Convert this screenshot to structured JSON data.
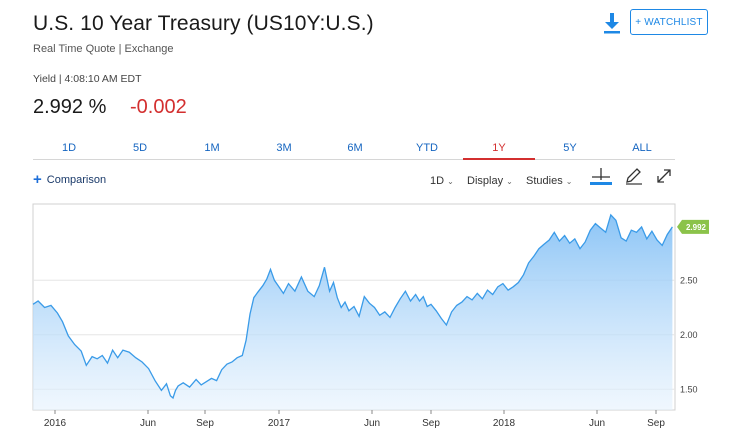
{
  "header": {
    "title": "U.S. 10 Year Treasury (US10Y:U.S.)",
    "subtitle": "Real Time Quote | Exchange",
    "watchlist_label": "+ WATCHLIST"
  },
  "quote": {
    "meta": "Yield | 4:08:10 AM EDT",
    "price": "2.992 %",
    "change": "-0.002",
    "change_color": "#d32f2f"
  },
  "tabs": [
    "1D",
    "5D",
    "1M",
    "3M",
    "6M",
    "YTD",
    "1Y",
    "5Y",
    "ALL"
  ],
  "active_tab": "1Y",
  "toolbar": {
    "comparison_label": "Comparison",
    "interval_label": "1D",
    "display_label": "Display",
    "studies_label": "Studies"
  },
  "colors": {
    "accent": "#1e88e5",
    "line": "#3a9be8",
    "last_badge": "#8bc34a"
  },
  "chart_data": {
    "type": "area",
    "x_tick_labels": [
      "2016",
      "Jun",
      "Sep",
      "2017",
      "Jun",
      "Sep",
      "2018",
      "Jun",
      "Sep"
    ],
    "y_tick_labels": [
      "1.50",
      "2.00",
      "2.50"
    ],
    "y_ticks": [
      1.5,
      2.0,
      2.5
    ],
    "last_value_label": "2.992",
    "ylim": [
      1.31,
      3.2
    ],
    "x_range": [
      0,
      1000
    ],
    "grid": "horizontal",
    "x": [
      0,
      8,
      18,
      28,
      38,
      46,
      55,
      65,
      75,
      83,
      92,
      100,
      108,
      116,
      124,
      132,
      140,
      150,
      160,
      170,
      180,
      190,
      200,
      208,
      214,
      218,
      222,
      226,
      234,
      244,
      254,
      262,
      270,
      278,
      286,
      294,
      302,
      310,
      318,
      326,
      332,
      338,
      344,
      350,
      358,
      364,
      370,
      376,
      382,
      390,
      398,
      408,
      418,
      428,
      438,
      446,
      454,
      462,
      468,
      474,
      480,
      486,
      492,
      500,
      508,
      516,
      524,
      532,
      540,
      548,
      556,
      564,
      572,
      580,
      588,
      596,
      602,
      608,
      614,
      620,
      628,
      636,
      644,
      652,
      660,
      668,
      676,
      684,
      692,
      700,
      708,
      716,
      724,
      732,
      740,
      748,
      756,
      764,
      772,
      780,
      788,
      796,
      804,
      812,
      820,
      828,
      836,
      844,
      852,
      860,
      868,
      876,
      884,
      892,
      900,
      908,
      916,
      924,
      932,
      940,
      948,
      956,
      964,
      972,
      980,
      988,
      996
    ],
    "values": [
      2.28,
      2.31,
      2.25,
      2.27,
      2.2,
      2.12,
      1.99,
      1.91,
      1.85,
      1.72,
      1.8,
      1.78,
      1.81,
      1.74,
      1.86,
      1.79,
      1.86,
      1.84,
      1.79,
      1.75,
      1.69,
      1.58,
      1.49,
      1.55,
      1.44,
      1.42,
      1.49,
      1.53,
      1.56,
      1.52,
      1.59,
      1.54,
      1.57,
      1.6,
      1.58,
      1.68,
      1.73,
      1.75,
      1.79,
      1.81,
      1.95,
      2.19,
      2.34,
      2.39,
      2.45,
      2.51,
      2.6,
      2.5,
      2.45,
      2.38,
      2.47,
      2.4,
      2.53,
      2.4,
      2.35,
      2.45,
      2.62,
      2.4,
      2.48,
      2.34,
      2.25,
      2.3,
      2.22,
      2.26,
      2.17,
      2.35,
      2.29,
      2.25,
      2.18,
      2.21,
      2.16,
      2.25,
      2.33,
      2.4,
      2.31,
      2.37,
      2.31,
      2.35,
      2.26,
      2.28,
      2.22,
      2.15,
      2.09,
      2.21,
      2.27,
      2.3,
      2.35,
      2.32,
      2.38,
      2.33,
      2.41,
      2.37,
      2.44,
      2.47,
      2.41,
      2.44,
      2.48,
      2.55,
      2.66,
      2.72,
      2.79,
      2.83,
      2.87,
      2.94,
      2.86,
      2.91,
      2.84,
      2.88,
      2.79,
      2.85,
      2.96,
      3.02,
      2.98,
      2.94,
      3.1,
      3.05,
      2.89,
      2.86,
      2.96,
      2.94,
      2.99,
      2.88,
      2.95,
      2.87,
      2.82,
      2.92,
      2.99
    ]
  }
}
